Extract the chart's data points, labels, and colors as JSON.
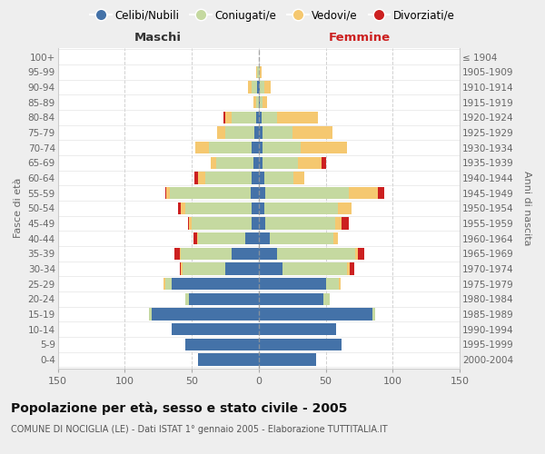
{
  "age_groups": [
    "100+",
    "95-99",
    "90-94",
    "85-89",
    "80-84",
    "75-79",
    "70-74",
    "65-69",
    "60-64",
    "55-59",
    "50-54",
    "45-49",
    "40-44",
    "35-39",
    "30-34",
    "25-29",
    "20-24",
    "15-19",
    "10-14",
    "5-9",
    "0-4"
  ],
  "birth_years": [
    "≤ 1904",
    "1905-1909",
    "1910-1914",
    "1915-1919",
    "1920-1924",
    "1925-1929",
    "1930-1934",
    "1935-1939",
    "1940-1944",
    "1945-1949",
    "1950-1954",
    "1955-1959",
    "1960-1964",
    "1965-1969",
    "1970-1974",
    "1975-1979",
    "1980-1984",
    "1985-1989",
    "1990-1994",
    "1995-1999",
    "2000-2004"
  ],
  "maschi": {
    "celibi": [
      0,
      0,
      1,
      0,
      2,
      3,
      5,
      4,
      5,
      6,
      5,
      5,
      10,
      20,
      25,
      65,
      52,
      80,
      65,
      55,
      45
    ],
    "coniugati": [
      0,
      1,
      4,
      2,
      18,
      22,
      32,
      28,
      35,
      60,
      50,
      45,
      35,
      38,
      32,
      5,
      3,
      2,
      0,
      0,
      0
    ],
    "vedovi": [
      0,
      1,
      3,
      2,
      5,
      6,
      10,
      4,
      5,
      3,
      3,
      2,
      1,
      1,
      1,
      1,
      0,
      0,
      0,
      0,
      0
    ],
    "divorziati": [
      0,
      0,
      0,
      0,
      1,
      0,
      0,
      0,
      3,
      1,
      2,
      1,
      3,
      4,
      1,
      0,
      0,
      0,
      0,
      0,
      0
    ]
  },
  "femmine": {
    "nubili": [
      0,
      0,
      1,
      1,
      2,
      3,
      3,
      3,
      4,
      5,
      4,
      5,
      8,
      14,
      18,
      50,
      48,
      85,
      58,
      62,
      43
    ],
    "coniugate": [
      0,
      1,
      3,
      2,
      12,
      22,
      28,
      26,
      22,
      62,
      55,
      52,
      48,
      58,
      48,
      10,
      5,
      2,
      0,
      0,
      0
    ],
    "vedove": [
      0,
      1,
      5,
      3,
      30,
      30,
      35,
      18,
      8,
      22,
      10,
      5,
      3,
      2,
      2,
      1,
      0,
      0,
      0,
      0,
      0
    ],
    "divorziate": [
      0,
      0,
      0,
      0,
      0,
      0,
      0,
      3,
      0,
      5,
      0,
      5,
      0,
      5,
      3,
      0,
      0,
      0,
      0,
      0,
      0
    ]
  },
  "colors": {
    "celibi": "#4472a8",
    "coniugati": "#c5d9a0",
    "vedovi": "#f5c870",
    "divorziati": "#cc2020"
  },
  "xlim": 150,
  "title": "Popolazione per età, sesso e stato civile - 2005",
  "subtitle": "COMUNE DI NOCIGLIA (LE) - Dati ISTAT 1° gennaio 2005 - Elaborazione TUTTITALIA.IT",
  "ylabel_left": "Fasce di età",
  "ylabel_right": "Anni di nascita",
  "legend_labels": [
    "Celibi/Nubili",
    "Coniugati/e",
    "Vedovi/e",
    "Divorziati/e"
  ],
  "bg_color": "#eeeeee",
  "plot_bg_color": "#ffffff",
  "grid_color": "#cccccc"
}
